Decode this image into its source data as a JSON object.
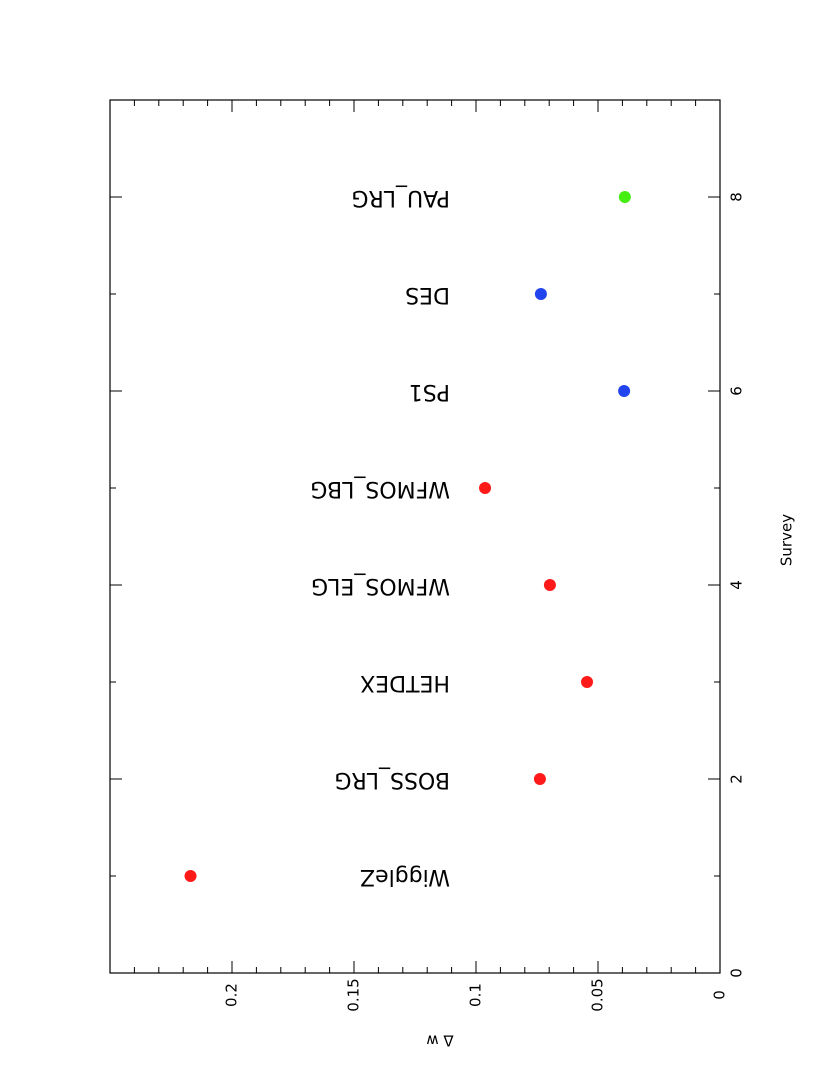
{
  "chart_data": {
    "type": "scatter",
    "x_label": "Survey",
    "y_label": "Δ w",
    "x": [
      1,
      2,
      3,
      4,
      5,
      6,
      7,
      8
    ],
    "values": [
      0.217,
      0.0738,
      0.0545,
      0.0697,
      0.0963,
      0.0393,
      0.0734,
      0.039
    ],
    "colors": [
      "#ff1a1a",
      "#ff1a1a",
      "#ff1a1a",
      "#ff1a1a",
      "#ff1a1a",
      "#2244ee",
      "#2244ee",
      "#44ee11"
    ],
    "point_labels": [
      "WiggleZ",
      "BOSS_LRG",
      "HETDEX",
      "WFMOS_ELG",
      "WFMOS_LBG",
      "PS1",
      "DES",
      "PAU_LRG"
    ],
    "xlim": [
      0,
      9
    ],
    "ylim": [
      0,
      0.25
    ],
    "xticks": [
      0,
      2,
      4,
      6,
      8
    ],
    "yticks": [
      0,
      0.05,
      0.1,
      0.15,
      0.2
    ],
    "xminorticks": [
      1,
      3,
      5,
      7
    ],
    "yminorticks": [
      0.01,
      0.02,
      0.03,
      0.04,
      0.06,
      0.07,
      0.08,
      0.09,
      0.11,
      0.12,
      0.13,
      0.14,
      0.16,
      0.17,
      0.18,
      0.19,
      0.21,
      0.22,
      0.23,
      0.24
    ],
    "orientation": "rotated"
  }
}
